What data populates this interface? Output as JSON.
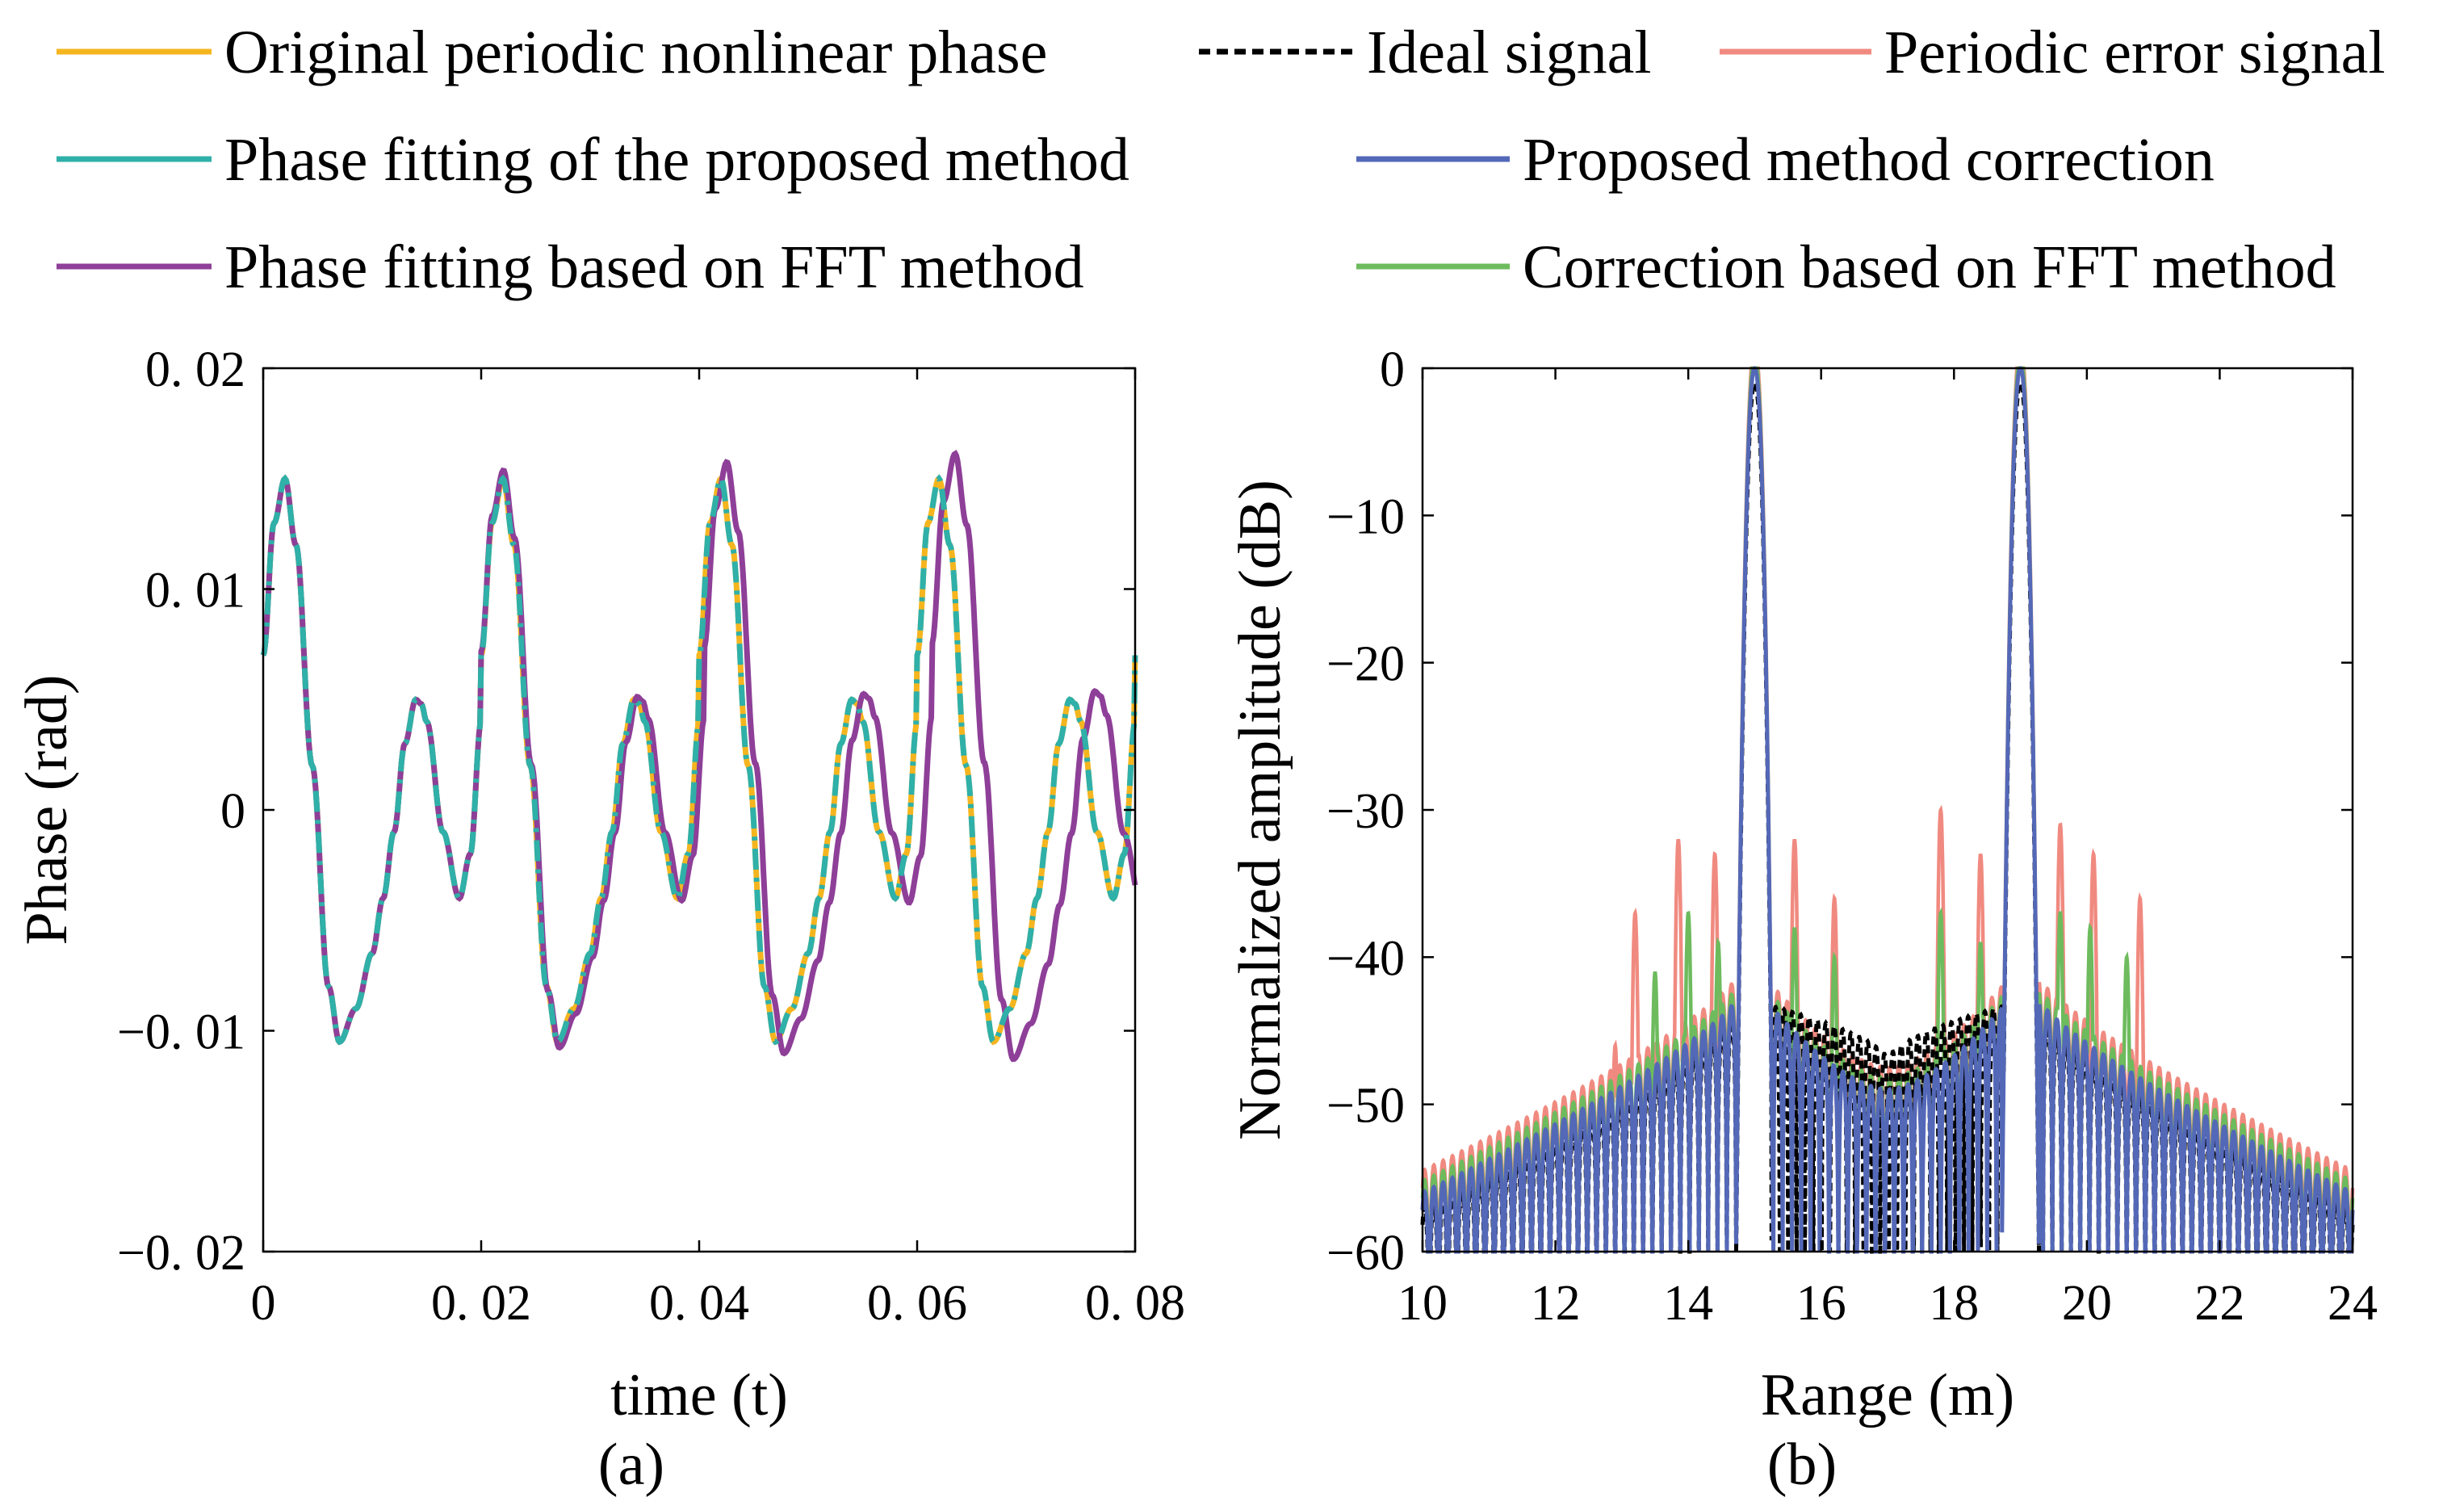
{
  "legend": [
    {
      "label": "Original periodic nonlinear phase",
      "color": "#f5b51f",
      "dash": "solid"
    },
    {
      "label": "Ideal signal",
      "color": "#000000",
      "dash": "dashed"
    },
    {
      "label": "Periodic error signal",
      "color": "#f08a80",
      "dash": "solid"
    },
    {
      "label": "Phase fitting of the proposed method",
      "color": "#2fb0a8",
      "dash": "solid"
    },
    {
      "label": "Proposed method correction",
      "color": "#5468b8",
      "dash": "solid"
    },
    {
      "label": "Phase fitting based on FFT method",
      "color": "#8e3f98",
      "dash": "solid"
    },
    {
      "label": "Correction based on FFT method",
      "color": "#6dbb5d",
      "dash": "solid"
    }
  ],
  "chart_data": [
    {
      "type": "line",
      "panel_label": "(a)",
      "xlabel": "time (t)",
      "ylabel": "Phase (rad)",
      "xlim": [
        0,
        0.08
      ],
      "ylim": [
        -0.02,
        0.02
      ],
      "xticks": [
        0,
        0.02,
        0.04,
        0.06,
        0.08
      ],
      "xtick_labels": [
        "0",
        "0. 02",
        "0. 04",
        "0. 06",
        "0. 08"
      ],
      "yticks": [
        0.02,
        0.01,
        0,
        -0.01,
        -0.02
      ],
      "ytick_labels": [
        "0. 02",
        "0. 01",
        "0",
        "−0. 01",
        "−0. 02"
      ],
      "period": 0.02,
      "series": [
        {
          "name": "Original periodic nonlinear phase",
          "color": "#f5b51f",
          "style": "solid",
          "x": [
            0,
            0.001,
            0.002,
            0.003,
            0.0045,
            0.006,
            0.007,
            0.0085,
            0.01,
            0.011,
            0.012,
            0.013,
            0.014,
            0.0145,
            0.015,
            0.0165,
            0.018,
            0.019,
            0.02,
            0.021,
            0.0215,
            0.022
          ],
          "values": [
            0.007,
            0.013,
            0.015,
            0.012,
            0.002,
            -0.008,
            -0.0105,
            -0.009,
            -0.0065,
            -0.004,
            -0.001,
            0.003,
            0.005,
            0.0048,
            0.004,
            -0.001,
            -0.004,
            -0.002,
            0.004,
            0.012,
            0.0145,
            0.015
          ]
        },
        {
          "name": "Phase fitting of the proposed method",
          "color": "#2fb0a8",
          "style": "dashdot",
          "x": [
            0,
            0.001,
            0.002,
            0.003,
            0.0045,
            0.006,
            0.007,
            0.0085,
            0.01,
            0.011,
            0.012,
            0.013,
            0.014,
            0.0145,
            0.015,
            0.0165,
            0.018,
            0.019,
            0.02,
            0.021,
            0.0215,
            0.022
          ],
          "values": [
            0.007,
            0.013,
            0.015,
            0.012,
            0.002,
            -0.008,
            -0.0105,
            -0.009,
            -0.0065,
            -0.004,
            -0.001,
            0.003,
            0.005,
            0.0048,
            0.004,
            -0.001,
            -0.004,
            -0.002,
            0.004,
            0.012,
            0.0145,
            0.015
          ]
        },
        {
          "name": "Phase fitting based on FFT method",
          "color": "#8e3f98",
          "style": "solid",
          "period_growth": 0.00045,
          "amp_growth": 0.00025,
          "x": [
            0,
            0.001,
            0.002,
            0.003,
            0.0045,
            0.006,
            0.007,
            0.0085,
            0.01,
            0.011,
            0.012,
            0.013,
            0.014,
            0.0145,
            0.015,
            0.0165,
            0.018,
            0.019,
            0.02,
            0.021,
            0.0215,
            0.022
          ],
          "values": [
            0.007,
            0.013,
            0.015,
            0.012,
            0.002,
            -0.008,
            -0.0105,
            -0.009,
            -0.0065,
            -0.004,
            -0.001,
            0.003,
            0.005,
            0.0048,
            0.004,
            -0.001,
            -0.004,
            -0.002,
            0.004,
            0.012,
            0.0145,
            0.015
          ]
        }
      ]
    },
    {
      "type": "line",
      "panel_label": "(b)",
      "xlabel": "Range (m)",
      "ylabel": "Normalized amplitude (dB)",
      "xlim": [
        10,
        24
      ],
      "ylim": [
        -60,
        0
      ],
      "xticks": [
        10,
        12,
        14,
        16,
        18,
        20,
        22,
        24
      ],
      "xtick_labels": [
        "10",
        "12",
        "14",
        "16",
        "18",
        "20",
        "22",
        "24"
      ],
      "yticks": [
        0,
        -10,
        -20,
        -30,
        -40,
        -50,
        -60
      ],
      "ytick_labels": [
        "0",
        "−10",
        "−20",
        "−30",
        "−40",
        "−50",
        "−60"
      ],
      "main_peaks": [
        15,
        19
      ],
      "sidelobe_spacing": 0.14,
      "series": [
        {
          "name": "Periodic error signal",
          "color": "#f08a80",
          "spurs": [
            {
              "x": 13.2,
              "peak": -37
            },
            {
              "x": 13.85,
              "peak": -32
            },
            {
              "x": 14.4,
              "peak": -33
            },
            {
              "x": 15.6,
              "peak": -32
            },
            {
              "x": 16.2,
              "peak": -36
            },
            {
              "x": 17.8,
              "peak": -30
            },
            {
              "x": 18.4,
              "peak": -33
            },
            {
              "x": 19.6,
              "peak": -31
            },
            {
              "x": 20.1,
              "peak": -33
            },
            {
              "x": 20.8,
              "peak": -36
            },
            {
              "x": 12.9,
              "peak": -46
            },
            {
              "x": 21.2,
              "peak": -50
            }
          ]
        },
        {
          "name": "Correction based on FFT method",
          "color": "#6dbb5d",
          "spurs": [
            {
              "x": 13.5,
              "peak": -41
            },
            {
              "x": 14.0,
              "peak": -37
            },
            {
              "x": 14.45,
              "peak": -39
            },
            {
              "x": 15.6,
              "peak": -38
            },
            {
              "x": 16.2,
              "peak": -40
            },
            {
              "x": 17.8,
              "peak": -37
            },
            {
              "x": 18.4,
              "peak": -39
            },
            {
              "x": 19.6,
              "peak": -37
            },
            {
              "x": 20.05,
              "peak": -38
            },
            {
              "x": 20.6,
              "peak": -40
            }
          ]
        },
        {
          "name": "Ideal signal",
          "color": "#000000",
          "inner_level": -43
        },
        {
          "name": "Proposed method correction",
          "color": "#5468b8",
          "peak": 0,
          "mainlobe_halfwidth": 0.28,
          "edge_level": -56,
          "near_level": -43
        }
      ]
    }
  ]
}
